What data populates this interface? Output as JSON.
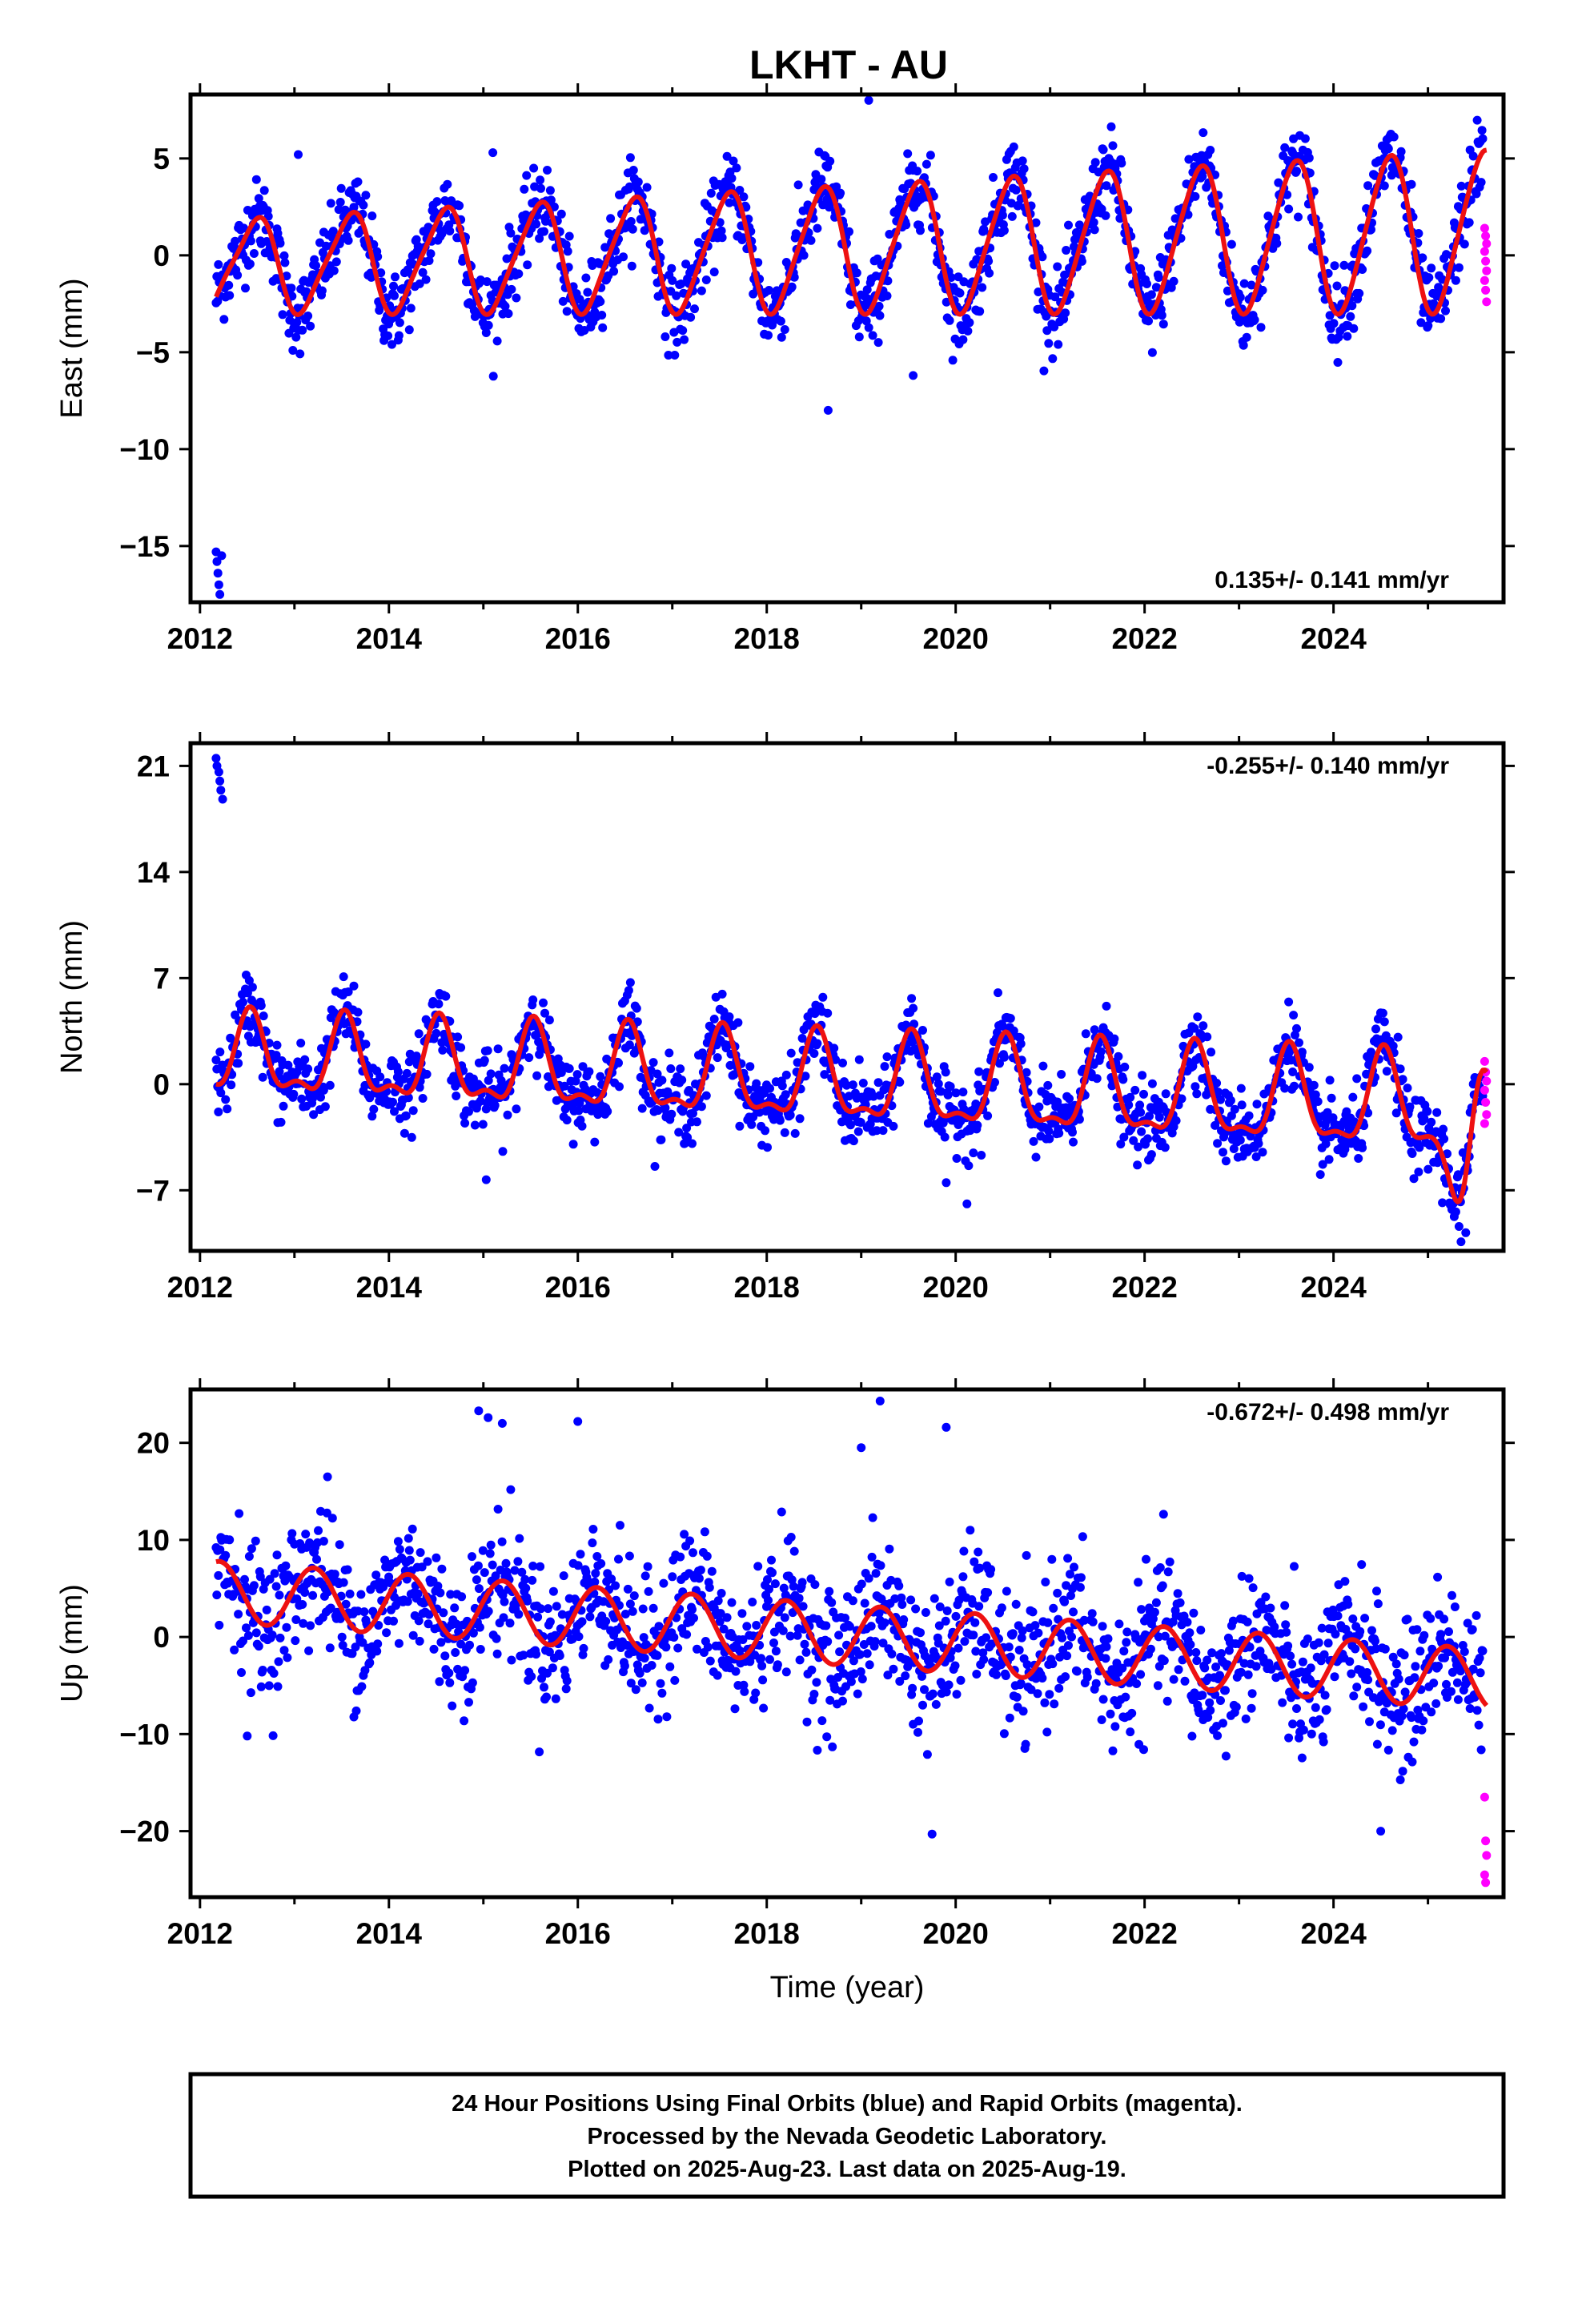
{
  "title": "LKHT - AU",
  "footer": {
    "line1": "24 Hour Positions Using Final Orbits (blue) and Rapid Orbits (magenta).",
    "line2": "Processed by the Nevada Geodetic Laboratory.",
    "line3": "Plotted on 2025-Aug-23. Last data on 2025-Aug-19."
  },
  "colors": {
    "final_orbits": "#0000ff",
    "rapid_orbits": "#ff00ff",
    "model_fit": "#ee1111",
    "frame": "#000000"
  },
  "chart_data": [
    {
      "type": "scatter",
      "ylabel": "East (mm)",
      "xlabel": "",
      "xlim": [
        2011.9,
        2025.8
      ],
      "ylim": [
        -17.9,
        8.3
      ],
      "x_ticks": [
        2012,
        2014,
        2016,
        2018,
        2020,
        2022,
        2024
      ],
      "x_tick_labels": [
        "2012",
        "2014",
        "2016",
        "2018",
        "2020",
        "2022",
        "2024"
      ],
      "y_ticks": [
        5,
        0,
        -5,
        -10,
        -15
      ],
      "y_tick_labels": [
        "5",
        "0",
        "−5",
        "−10",
        "−15"
      ],
      "rate_label": "0.135+/- 0.141 mm/yr",
      "rate_position": "bottom-right",
      "model": {
        "intercept_2012": -0.6,
        "trend_mm_per_yr": 0.135,
        "annual_cos": -2.0,
        "annual_sin": -1.1,
        "annual_amp_growth": 0.06,
        "semiannual_cos": -0.4,
        "semiannual_sin": 0.2
      },
      "scatter_noise_mm": 1.0,
      "rapid_orbit_values": [
        1.4,
        1.0,
        0.6,
        0.2,
        -0.3,
        -0.8,
        -1.3,
        -1.8,
        -2.4
      ],
      "outliers": [
        [
          2012.17,
          -15.3
        ],
        [
          2012.18,
          -15.8
        ],
        [
          2012.19,
          -16.4
        ],
        [
          2012.2,
          -17.0
        ],
        [
          2012.21,
          -17.5
        ],
        [
          2012.23,
          -15.5
        ],
        [
          2013.04,
          5.2
        ],
        [
          2015.1,
          5.3
        ],
        [
          2019.08,
          8.0
        ],
        [
          2018.65,
          -8.0
        ],
        [
          2019.55,
          -6.2
        ]
      ]
    },
    {
      "type": "scatter",
      "ylabel": "North (mm)",
      "xlabel": "",
      "xlim": [
        2011.9,
        2025.8
      ],
      "ylim": [
        -11.0,
        22.5
      ],
      "x_ticks": [
        2012,
        2014,
        2016,
        2018,
        2020,
        2022,
        2024
      ],
      "x_tick_labels": [
        "2012",
        "2014",
        "2016",
        "2018",
        "2020",
        "2022",
        "2024"
      ],
      "y_ticks": [
        21,
        14,
        7,
        0,
        -7
      ],
      "y_tick_labels": [
        "21",
        "14",
        "7",
        "0",
        "−7"
      ],
      "rate_label": "-0.255+/- 0.140 mm/yr",
      "rate_position": "top-right",
      "model": {
        "intercept_2012": 1.8,
        "trend_mm_per_yr": -0.255,
        "annual_cos": -2.3,
        "annual_sin": -0.5,
        "annual_amp_growth": 0.02,
        "semiannual_cos": 1.0,
        "semiannual_sin": 0.4
      },
      "scatter_noise_mm": 1.2,
      "late_dip": {
        "center": 2025.37,
        "width": 0.16,
        "depth": -6.5
      },
      "rapid_orbit_values": [
        1.5,
        0.8,
        0.2,
        -0.4,
        -1.2,
        -2.0,
        -2.6
      ],
      "outliers": [
        [
          2012.17,
          21.5
        ],
        [
          2012.18,
          21.0
        ],
        [
          2012.2,
          20.6
        ],
        [
          2012.21,
          20.0
        ],
        [
          2012.22,
          19.4
        ],
        [
          2012.24,
          18.8
        ],
        [
          2015.03,
          -6.3
        ],
        [
          2019.9,
          -6.5
        ],
        [
          2020.12,
          -7.9
        ],
        [
          2025.35,
          -10.4
        ],
        [
          2025.4,
          -9.8
        ]
      ]
    },
    {
      "type": "scatter",
      "ylabel": "Up (mm)",
      "xlabel": "Time (year)",
      "xlim": [
        2011.9,
        2025.8
      ],
      "ylim": [
        -26.8,
        25.5
      ],
      "x_ticks": [
        2012,
        2014,
        2016,
        2018,
        2020,
        2022,
        2024
      ],
      "x_tick_labels": [
        "2012",
        "2014",
        "2016",
        "2018",
        "2020",
        "2022",
        "2024"
      ],
      "y_ticks": [
        20,
        10,
        0,
        -10,
        -20
      ],
      "y_tick_labels": [
        "20",
        "10",
        "0",
        "−10",
        "−20"
      ],
      "rate_label": "-0.672+/- 0.498 mm/yr",
      "rate_position": "top-right",
      "model": {
        "intercept_2012": 4.8,
        "trend_mm_per_yr": -0.672,
        "annual_cos": 0.9,
        "annual_sin": 3.0,
        "annual_amp_growth": 0.0,
        "semiannual_cos": 0.0,
        "semiannual_sin": 0.0
      },
      "scatter_noise_mm": 3.5,
      "rapid_orbit_values": [
        -16.5,
        -21.0,
        -22.5,
        -24.5,
        -25.3
      ],
      "outliers": [
        [
          2014.95,
          23.3
        ],
        [
          2015.05,
          22.6
        ],
        [
          2015.2,
          22.0
        ],
        [
          2016.0,
          22.2
        ],
        [
          2019.2,
          24.3
        ],
        [
          2019.0,
          19.5
        ],
        [
          2019.9,
          21.6
        ],
        [
          2019.75,
          -20.3
        ],
        [
          2012.5,
          -10.2
        ],
        [
          2013.35,
          16.5
        ],
        [
          2024.5,
          -20.0
        ]
      ]
    }
  ]
}
